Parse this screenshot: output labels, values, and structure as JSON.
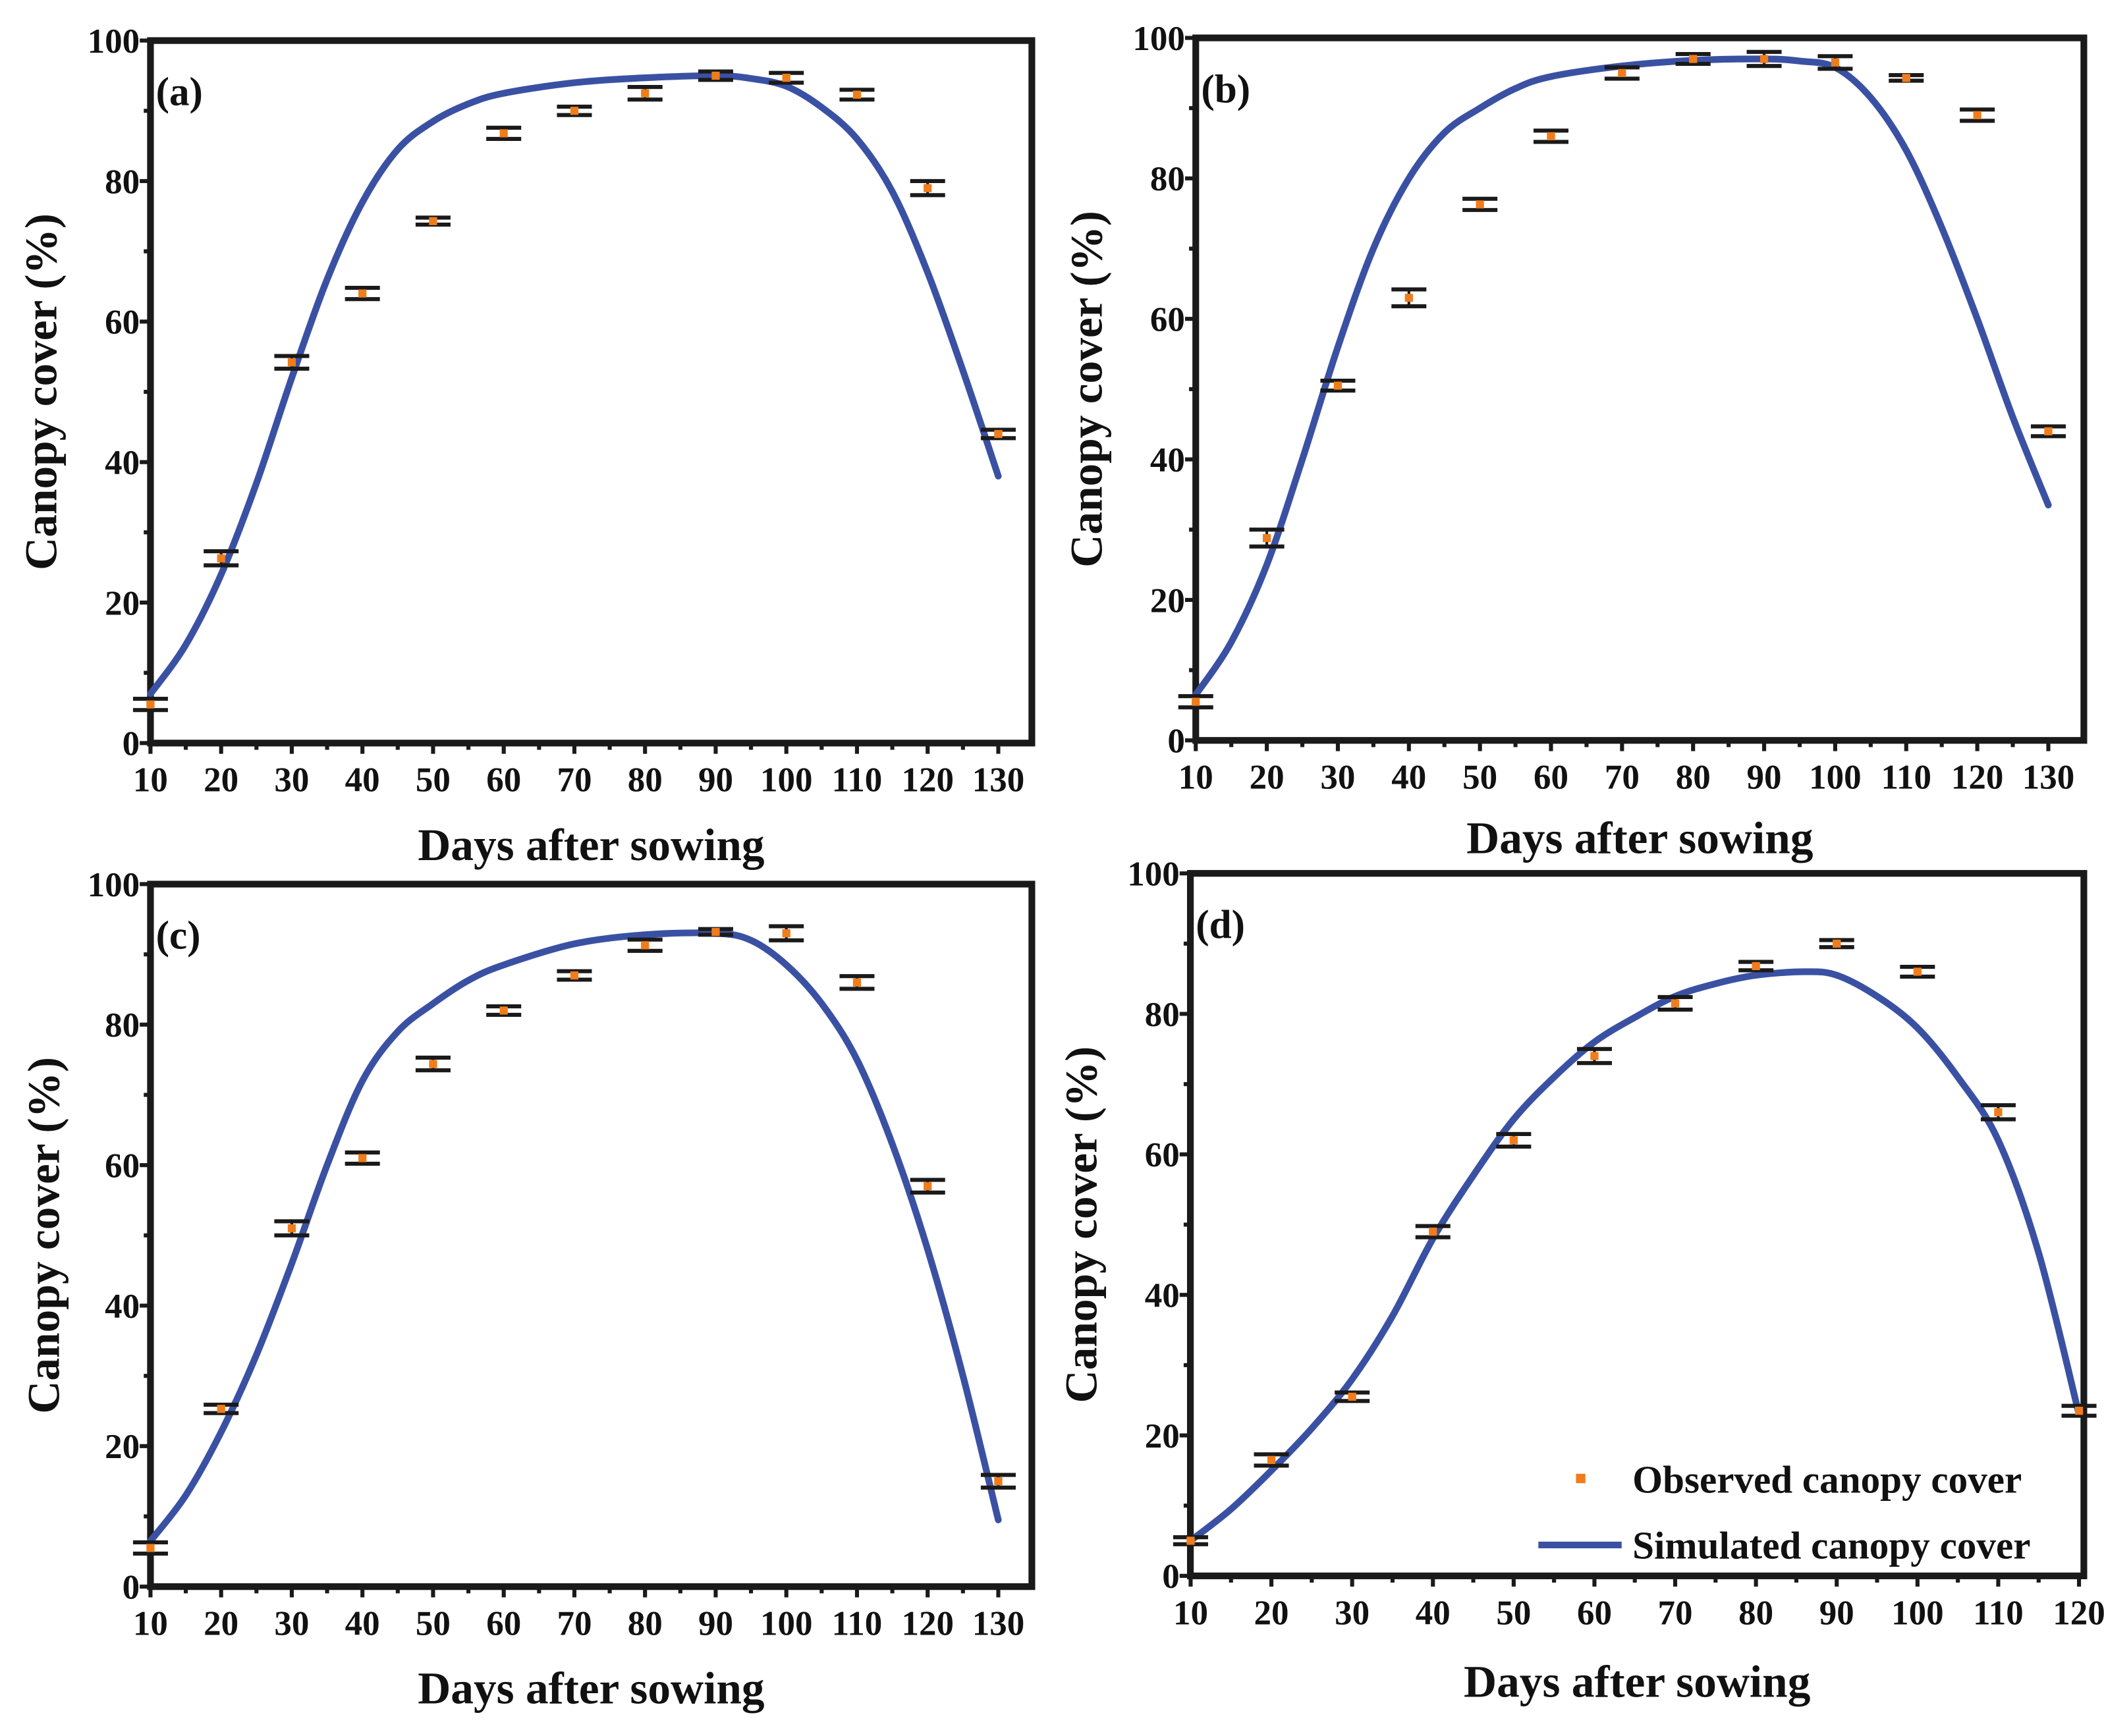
{
  "colors": {
    "observed": "#f07c1c",
    "simulated": "#3a51a3",
    "axis": "#1a1a1a",
    "errorbar": "#1a1a1a"
  },
  "legend": {
    "observed_label": "Observed canopy cover",
    "simulated_label": "Simulated canopy cover",
    "placement": "bottom-right of panel (d)"
  },
  "chart_data": [
    {
      "type": "scatter+line",
      "panel_label": "(a)",
      "xlabel": "Days after sowing",
      "ylabel": "Canopy cover (%)",
      "xlim": [
        10,
        134.75
      ],
      "ylim": [
        0,
        100
      ],
      "xticks": [
        10,
        20,
        30,
        40,
        50,
        60,
        70,
        80,
        90,
        100,
        110,
        120,
        130
      ],
      "yticks": [
        0,
        20,
        40,
        60,
        80,
        100
      ],
      "observed": {
        "x": [
          10,
          20,
          30,
          40,
          50,
          60,
          70,
          80,
          90,
          100,
          110,
          120,
          130
        ],
        "y": [
          5.5,
          26.3,
          54.2,
          64,
          74.3,
          86.8,
          90,
          92.5,
          95,
          94.7,
          92.3,
          79,
          44
        ],
        "err": [
          0.8,
          1,
          0.9,
          0.8,
          0.5,
          0.8,
          0.6,
          0.9,
          0.6,
          0.7,
          0.7,
          1,
          0.6
        ]
      },
      "simulated": {
        "x": [
          10,
          15,
          20,
          25,
          30,
          35,
          40,
          45,
          50,
          55,
          60,
          70,
          80,
          90,
          95,
          100,
          105,
          110,
          115,
          120,
          125,
          130
        ],
        "y": [
          7,
          14,
          24,
          37,
          52,
          66,
          77,
          84.5,
          88.5,
          91,
          92.5,
          94,
          94.7,
          95,
          94.6,
          93.5,
          90.5,
          86,
          78.5,
          67,
          53,
          38
        ]
      }
    },
    {
      "type": "scatter+line",
      "panel_label": "(b)",
      "xlabel": "Days after sowing",
      "ylabel": "Canopy cover (%)",
      "xlim": [
        10,
        135
      ],
      "ylim": [
        0,
        100
      ],
      "xticks": [
        10,
        20,
        30,
        40,
        50,
        60,
        70,
        80,
        90,
        100,
        110,
        120,
        130
      ],
      "yticks": [
        0,
        20,
        40,
        60,
        80,
        100
      ],
      "observed": {
        "x": [
          10,
          20,
          30,
          40,
          50,
          60,
          70,
          80,
          90,
          100,
          110,
          120,
          130
        ],
        "y": [
          5.5,
          28.8,
          50.5,
          63,
          76.3,
          86,
          95,
          97,
          97,
          96.5,
          94.3,
          89,
          44
        ],
        "err": [
          0.8,
          1.2,
          0.7,
          1.2,
          0.8,
          0.8,
          0.8,
          0.7,
          1,
          0.9,
          0.4,
          0.8,
          0.7
        ]
      },
      "simulated": {
        "x": [
          10,
          15,
          20,
          25,
          30,
          35,
          40,
          45,
          50,
          55,
          60,
          70,
          80,
          90,
          95,
          100,
          105,
          110,
          115,
          120,
          125,
          130
        ],
        "y": [
          6.5,
          14,
          25,
          40,
          56,
          70,
          80,
          86.5,
          90,
          92.8,
          94.5,
          96,
          96.8,
          97,
          96.7,
          95.8,
          91.5,
          84,
          73,
          60,
          46,
          33.5
        ]
      }
    },
    {
      "type": "scatter+line",
      "panel_label": "(c)",
      "xlabel": "Days after sowing",
      "ylabel": "Canopy cover (%)",
      "xlim": [
        10,
        134.75
      ],
      "ylim": [
        0,
        100
      ],
      "xticks": [
        10,
        20,
        30,
        40,
        50,
        60,
        70,
        80,
        90,
        100,
        110,
        120,
        130
      ],
      "yticks": [
        0,
        20,
        40,
        60,
        80,
        100
      ],
      "observed": {
        "x": [
          10,
          20,
          30,
          40,
          50,
          60,
          70,
          80,
          90,
          100,
          110,
          120,
          130
        ],
        "y": [
          5.5,
          25.3,
          51,
          61,
          74.4,
          82,
          87,
          91.3,
          93.2,
          93,
          86,
          57,
          15
        ],
        "err": [
          0.8,
          0.6,
          1,
          0.8,
          0.9,
          0.6,
          0.6,
          0.8,
          0.4,
          1,
          0.9,
          0.9,
          0.9
        ]
      },
      "simulated": {
        "x": [
          10,
          15,
          20,
          25,
          30,
          35,
          40,
          45,
          50,
          55,
          60,
          70,
          80,
          90,
          95,
          100,
          105,
          110,
          115,
          120,
          125,
          130
        ],
        "y": [
          6.5,
          13,
          22,
          33,
          46,
          60,
          72,
          79,
          83,
          86.3,
          88.5,
          91.5,
          92.8,
          93,
          92,
          88.5,
          83,
          75,
          63,
          48,
          30,
          9.5
        ]
      }
    },
    {
      "type": "scatter+line",
      "panel_label": "(d)",
      "xlabel": "Days after sowing",
      "ylabel": "Canopy cover (%)",
      "xlim": [
        9.97,
        120.6
      ],
      "ylim": [
        0,
        100
      ],
      "xticks": [
        10,
        20,
        30,
        40,
        50,
        60,
        70,
        80,
        90,
        100,
        110,
        120
      ],
      "yticks": [
        0,
        20,
        40,
        60,
        80,
        100
      ],
      "observed": {
        "x": [
          10,
          20,
          30,
          40,
          50,
          60,
          70,
          80,
          90,
          100,
          110,
          120
        ],
        "y": [
          5,
          16.5,
          25.5,
          49,
          62,
          74,
          81.5,
          86.8,
          90,
          86,
          66,
          23.5
        ],
        "err": [
          0.5,
          0.8,
          0.6,
          0.8,
          0.9,
          1,
          0.9,
          0.6,
          0.5,
          0.7,
          1,
          0.7
        ]
      },
      "simulated": {
        "x": [
          10,
          15,
          20,
          25,
          30,
          35,
          40,
          45,
          50,
          55,
          60,
          65,
          70,
          75,
          80,
          86,
          90,
          95,
          100,
          105,
          110,
          115,
          120
        ],
        "y": [
          5,
          9.5,
          15,
          21,
          28,
          37,
          48,
          57,
          65,
          71,
          76,
          79.5,
          82.5,
          84.3,
          85.5,
          86,
          85.5,
          82.5,
          78,
          71,
          62,
          46,
          23
        ]
      }
    }
  ]
}
